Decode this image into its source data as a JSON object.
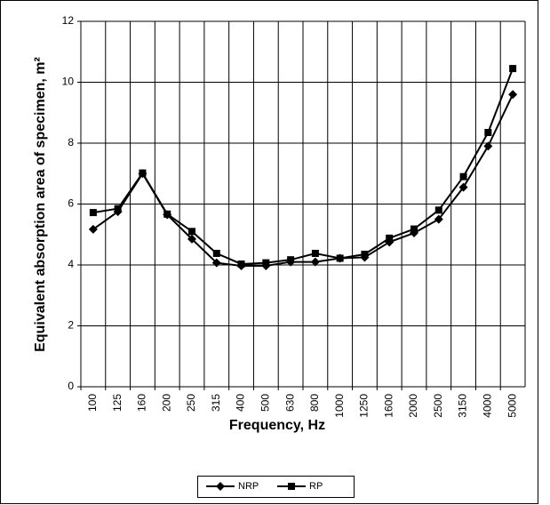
{
  "chart_data": {
    "type": "line",
    "xlabel": "Frequency, Hz",
    "ylabel": "Equivalent absorption area of specimen, m²",
    "categories": [
      "100",
      "125",
      "160",
      "200",
      "250",
      "315",
      "400",
      "500",
      "630",
      "800",
      "1000",
      "1250",
      "1600",
      "2000",
      "2500",
      "3150",
      "4000",
      "5000"
    ],
    "series": [
      {
        "name": "NRP",
        "color": "#000000",
        "marker": "diamond",
        "values": [
          5.17,
          5.75,
          7.0,
          5.65,
          4.85,
          4.07,
          3.97,
          3.97,
          4.1,
          4.1,
          4.22,
          4.25,
          4.75,
          5.05,
          5.5,
          6.55,
          7.9,
          9.6
        ]
      },
      {
        "name": "RP",
        "color": "#000000",
        "marker": "square",
        "values": [
          5.72,
          5.85,
          7.02,
          5.67,
          5.1,
          4.38,
          4.03,
          4.07,
          4.17,
          4.38,
          4.22,
          4.35,
          4.88,
          5.18,
          5.8,
          6.9,
          8.35,
          10.45
        ]
      }
    ],
    "ylim": [
      0,
      12
    ],
    "yticks": [
      0,
      2,
      4,
      6,
      8,
      10,
      12
    ],
    "grid": true,
    "legend": "bottom"
  }
}
